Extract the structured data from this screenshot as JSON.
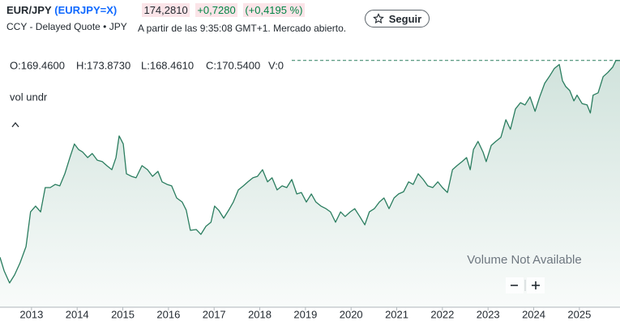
{
  "header": {
    "name": "EUR/JPY",
    "symbol": "(EURJPY=X)",
    "price": "174,2810",
    "change": "+0,7280",
    "change_percent": "(+0,4195 %)",
    "source": "CCY - Delayed Quote • JPY",
    "timestamp": "A partir de las 9:35:08 GMT+1. Mercado abierto.",
    "follow_button": "Seguir"
  },
  "chart_data": {
    "type": "line",
    "ohlc": [
      "O:169.4600",
      "H:173.8730",
      "L:168.4610",
      "C:170.5400",
      "V:0"
    ],
    "indicator": "vol undr",
    "volume_note": "Volume Not Available",
    "x": [
      2012.31,
      2012.4,
      2012.52,
      2012.63,
      2012.75,
      2012.88,
      2012.98,
      2013.09,
      2013.2,
      2013.3,
      2013.41,
      2013.52,
      2013.62,
      2013.73,
      2013.84,
      2013.94,
      2014.03,
      2014.12,
      2014.23,
      2014.33,
      2014.44,
      2014.55,
      2014.65,
      2014.76,
      2014.85,
      2014.92,
      2015.01,
      2015.08,
      2015.19,
      2015.29,
      2015.42,
      2015.54,
      2015.65,
      2015.77,
      2015.86,
      2015.97,
      2016.07,
      2016.18,
      2016.3,
      2016.39,
      2016.48,
      2016.61,
      2016.71,
      2016.82,
      2016.93,
      2017.01,
      2017.1,
      2017.21,
      2017.32,
      2017.42,
      2017.53,
      2017.64,
      2017.74,
      2017.85,
      2017.95,
      2018.06,
      2018.17,
      2018.27,
      2018.38,
      2018.49,
      2018.59,
      2018.7,
      2018.81,
      2018.91,
      2019.02,
      2019.13,
      2019.23,
      2019.34,
      2019.45,
      2019.55,
      2019.66,
      2019.77,
      2019.87,
      2019.98,
      2020.08,
      2020.19,
      2020.3,
      2020.4,
      2020.51,
      2020.62,
      2020.72,
      2020.83,
      2020.94,
      2021.04,
      2021.15,
      2021.26,
      2021.36,
      2021.47,
      2021.58,
      2021.68,
      2021.79,
      2021.9,
      2022.0,
      2022.11,
      2022.22,
      2022.32,
      2022.43,
      2022.53,
      2022.61,
      2022.68,
      2022.78,
      2022.89,
      2022.96,
      2023.07,
      2023.17,
      2023.28,
      2023.39,
      2023.49,
      2023.6,
      2023.71,
      2023.81,
      2023.92,
      2024.03,
      2024.13,
      2024.24,
      2024.34,
      2024.45,
      2024.56,
      2024.63,
      2024.7,
      2024.79,
      2024.88,
      2024.95,
      2025.06,
      2025.17,
      2025.24,
      2025.3,
      2025.41,
      2025.52,
      2025.62,
      2025.73,
      2025.8,
      2025.89
    ],
    "series": [
      {
        "color": "#2a7d5f",
        "values": [
          106.2,
          101.5,
          97.3,
          100.1,
          104.3,
          109.9,
          121.9,
          123.9,
          121.9,
          130.3,
          130.3,
          131.4,
          130.9,
          135.1,
          140.7,
          145.4,
          143.5,
          142.6,
          140.7,
          142.1,
          139.8,
          139.3,
          137.9,
          136.5,
          140.7,
          148.2,
          145.4,
          135.1,
          134.2,
          133.7,
          137.9,
          136.5,
          134.2,
          135.9,
          132.3,
          131.4,
          130.9,
          126.7,
          125.3,
          122.5,
          115.5,
          115.8,
          114.1,
          116.9,
          118.3,
          123.9,
          122.5,
          119.7,
          122.5,
          125.3,
          129.5,
          130.9,
          132.3,
          133.7,
          134.2,
          136.5,
          132.3,
          133.7,
          129.5,
          130.9,
          130.3,
          133.1,
          128.1,
          128.6,
          125.3,
          128.1,
          125.3,
          123.9,
          123.0,
          121.9,
          118.3,
          121.9,
          120.3,
          121.9,
          123.0,
          120.3,
          117.4,
          121.9,
          123.0,
          125.3,
          126.7,
          123.0,
          126.7,
          128.1,
          128.9,
          132.3,
          131.4,
          135.1,
          133.1,
          130.9,
          130.3,
          132.3,
          130.3,
          128.6,
          136.5,
          137.9,
          139.3,
          140.7,
          136.5,
          143.5,
          146.3,
          142.6,
          139.3,
          144.9,
          146.3,
          147.7,
          153.8,
          150.5,
          157.5,
          159.7,
          158.9,
          161.7,
          156.7,
          161.7,
          166.4,
          168.7,
          171.5,
          172.9,
          167.3,
          165.3,
          163.9,
          160.3,
          162.3,
          159.4,
          158.9,
          156.1,
          162.3,
          163.1,
          168.7,
          170.1,
          172.0,
          174.3,
          174.3
        ]
      }
    ],
    "xlim": [
      2012.31,
      2025.89
    ],
    "xticks": [
      2013,
      2014,
      2015,
      2016,
      2017,
      2018,
      2019,
      2020,
      2021,
      2022,
      2023,
      2024,
      2025
    ],
    "ylim": [
      88.9,
      181.8
    ]
  }
}
